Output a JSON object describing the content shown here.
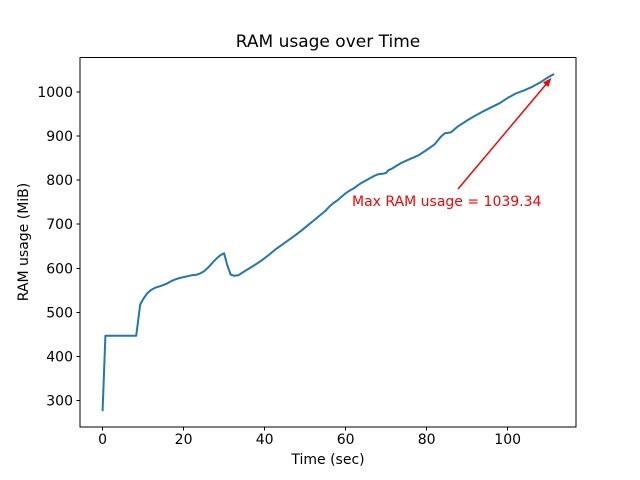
{
  "chart_data": {
    "type": "line",
    "title": "RAM usage over Time",
    "xlabel": "Time (sec)",
    "ylabel": "RAM usage (MiB)",
    "xlim": [
      -5.57,
      116.87
    ],
    "ylim": [
      239.9,
      1077.4
    ],
    "xticks": [
      0,
      20,
      40,
      60,
      80,
      100
    ],
    "yticks": [
      300,
      400,
      500,
      600,
      700,
      800,
      900,
      1000
    ],
    "grid": false,
    "legend": false,
    "background": "#ffffff",
    "line_color": "#1f77b4",
    "axes_color": "#000000",
    "series": [
      {
        "name": "RAM usage",
        "x": [
          0,
          0.7,
          8.3,
          9.3,
          10,
          11,
          12,
          13,
          14,
          15,
          16,
          17,
          18,
          19,
          20,
          21,
          22,
          23,
          24,
          25,
          26,
          27,
          28,
          29,
          30,
          30.8,
          31.6,
          32.5,
          33.5,
          35,
          37,
          39,
          41,
          43,
          45,
          47,
          49,
          51,
          53,
          55,
          56,
          57,
          58,
          59,
          60,
          61,
          62,
          63,
          64,
          65,
          66,
          67,
          68,
          69,
          70,
          70.5,
          71.5,
          72.5,
          74,
          76,
          78,
          80,
          82,
          83.5,
          84.5,
          86,
          87.5,
          89,
          90,
          92,
          94,
          96,
          98,
          100,
          102,
          104,
          106,
          108,
          110,
          111.3
        ],
        "y": [
          278,
          447,
          447,
          518,
          530,
          543,
          551,
          556,
          559,
          562,
          566,
          571,
          575,
          578,
          580,
          582,
          584,
          585,
          588,
          593,
          601,
          611,
          621,
          629,
          634,
          607,
          586,
          583,
          584,
          593,
          604,
          616,
          630,
          645,
          658,
          671,
          685,
          700,
          715,
          730,
          740,
          748,
          754,
          762,
          770,
          776,
          781,
          788,
          794,
          799,
          804,
          809,
          813,
          814,
          816,
          822,
          826,
          832,
          840,
          848,
          856,
          868,
          881,
          898,
          906,
          908,
          920,
          929,
          935,
          946,
          956,
          965,
          974,
          986,
          996,
          1003,
          1011,
          1021,
          1033,
          1039.34
        ]
      }
    ],
    "annotation": {
      "text": "Max RAM usage = 1039.34",
      "max_value": 1039.34,
      "max_time": 111.3,
      "color": "#ff0000"
    }
  }
}
